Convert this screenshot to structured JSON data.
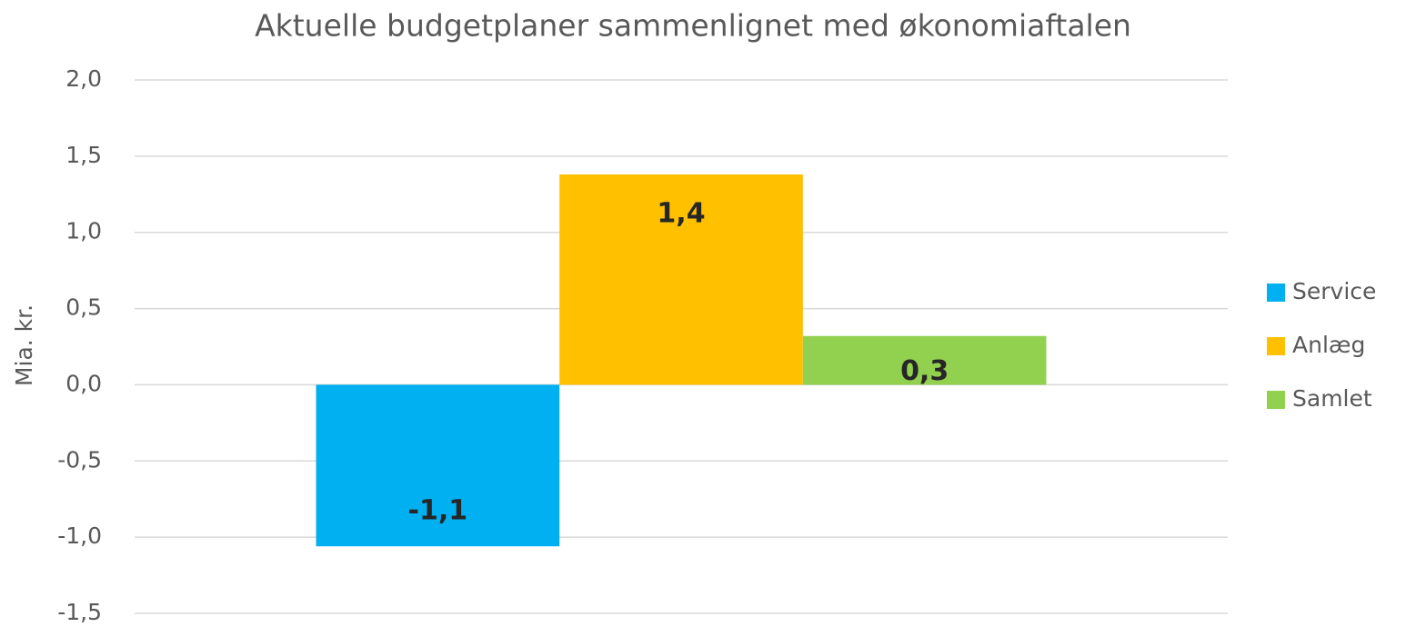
{
  "chart_data": {
    "type": "bar",
    "title": "Aktuelle budgetplaner sammenlignet med økonomiaftalen",
    "y_label": "Mia. kr.",
    "categories": [
      null
    ],
    "series": [
      {
        "name": "Service",
        "color": "#00b0f0",
        "values": [
          -1.06
        ],
        "value_labels": [
          "-1,1"
        ]
      },
      {
        "name": "Anlæg",
        "color": "#ffc000",
        "values": [
          1.38
        ],
        "value_labels": [
          "1,4"
        ]
      },
      {
        "name": "Samlet",
        "color": "#92d050",
        "values": [
          0.32
        ],
        "value_labels": [
          "0,3"
        ]
      }
    ],
    "ylim": [
      -1.5,
      2.0
    ],
    "yticks": [
      {
        "value": -1.5,
        "label": "-1,5"
      },
      {
        "value": -1.0,
        "label": "-1,0"
      },
      {
        "value": -0.5,
        "label": "-0,5"
      },
      {
        "value": 0,
        "label": "0,0"
      },
      {
        "value": 0.5,
        "label": "0,5"
      },
      {
        "value": 1.0,
        "label": "1,0"
      },
      {
        "value": 1.5,
        "label": "1,5"
      },
      {
        "value": 2.0,
        "label": "2,0"
      }
    ],
    "grid": true,
    "legend": "right"
  }
}
